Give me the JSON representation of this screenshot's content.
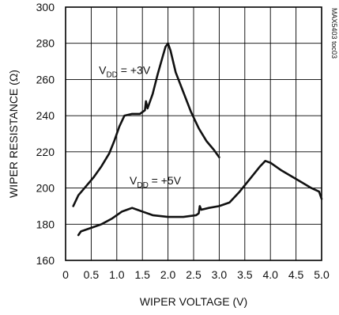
{
  "chart_data": {
    "type": "line",
    "xlabel": "WIPER VOLTAGE (V)",
    "ylabel": "WIPER RESISTANCE (Ω)",
    "xlim": [
      0,
      5.0
    ],
    "ylim": [
      160,
      300
    ],
    "grid": true,
    "x_ticks": [
      "0",
      "0.5",
      "1.0",
      "1.5",
      "2.0",
      "2.5",
      "3.0",
      "3.5",
      "4.0",
      "4.5",
      "5.0"
    ],
    "y_ticks": [
      "160",
      "180",
      "200",
      "220",
      "240",
      "260",
      "280",
      "300"
    ],
    "figure_code": "MAX5403 toc03",
    "series": [
      {
        "name": "VDD = +3V",
        "label_main": "V",
        "label_sub": "DD",
        "label_rest": " = +3V",
        "points": [
          [
            0.15,
            190
          ],
          [
            0.25,
            196
          ],
          [
            0.4,
            201
          ],
          [
            0.55,
            206
          ],
          [
            0.7,
            212
          ],
          [
            0.85,
            219
          ],
          [
            0.95,
            226
          ],
          [
            1.05,
            234
          ],
          [
            1.15,
            240
          ],
          [
            1.3,
            241
          ],
          [
            1.45,
            241
          ],
          [
            1.55,
            243
          ],
          [
            1.57,
            248
          ],
          [
            1.6,
            244
          ],
          [
            1.7,
            252
          ],
          [
            1.8,
            263
          ],
          [
            1.9,
            273
          ],
          [
            1.95,
            278
          ],
          [
            2.0,
            280
          ],
          [
            2.05,
            276
          ],
          [
            2.15,
            264
          ],
          [
            2.3,
            253
          ],
          [
            2.45,
            242
          ],
          [
            2.6,
            233
          ],
          [
            2.75,
            226
          ],
          [
            2.9,
            221
          ],
          [
            3.0,
            217
          ]
        ]
      },
      {
        "name": "VDD = +5V",
        "label_main": "V",
        "label_sub": "DD",
        "label_rest": " = +5V",
        "points": [
          [
            0.25,
            174
          ],
          [
            0.3,
            176
          ],
          [
            0.5,
            178
          ],
          [
            0.7,
            180
          ],
          [
            0.9,
            183
          ],
          [
            1.1,
            187
          ],
          [
            1.2,
            188
          ],
          [
            1.3,
            189
          ],
          [
            1.4,
            188
          ],
          [
            1.5,
            187
          ],
          [
            1.7,
            185
          ],
          [
            2.0,
            184
          ],
          [
            2.3,
            184
          ],
          [
            2.55,
            185
          ],
          [
            2.6,
            186
          ],
          [
            2.62,
            190
          ],
          [
            2.65,
            188
          ],
          [
            2.8,
            189
          ],
          [
            3.0,
            190
          ],
          [
            3.2,
            192
          ],
          [
            3.4,
            198
          ],
          [
            3.6,
            205
          ],
          [
            3.8,
            212
          ],
          [
            3.9,
            215
          ],
          [
            4.0,
            214
          ],
          [
            4.2,
            210
          ],
          [
            4.5,
            205
          ],
          [
            4.8,
            200
          ],
          [
            4.95,
            198
          ],
          [
            5.0,
            194
          ]
        ]
      }
    ],
    "annotations": [
      {
        "series": 0,
        "at": [
          0.65,
          263
        ],
        "anchor_x": 1.15,
        "anchor_y": 251
      },
      {
        "series": 1,
        "at": [
          1.25,
          202
        ],
        "anchor_x": 1.5,
        "anchor_y": 198
      }
    ]
  }
}
